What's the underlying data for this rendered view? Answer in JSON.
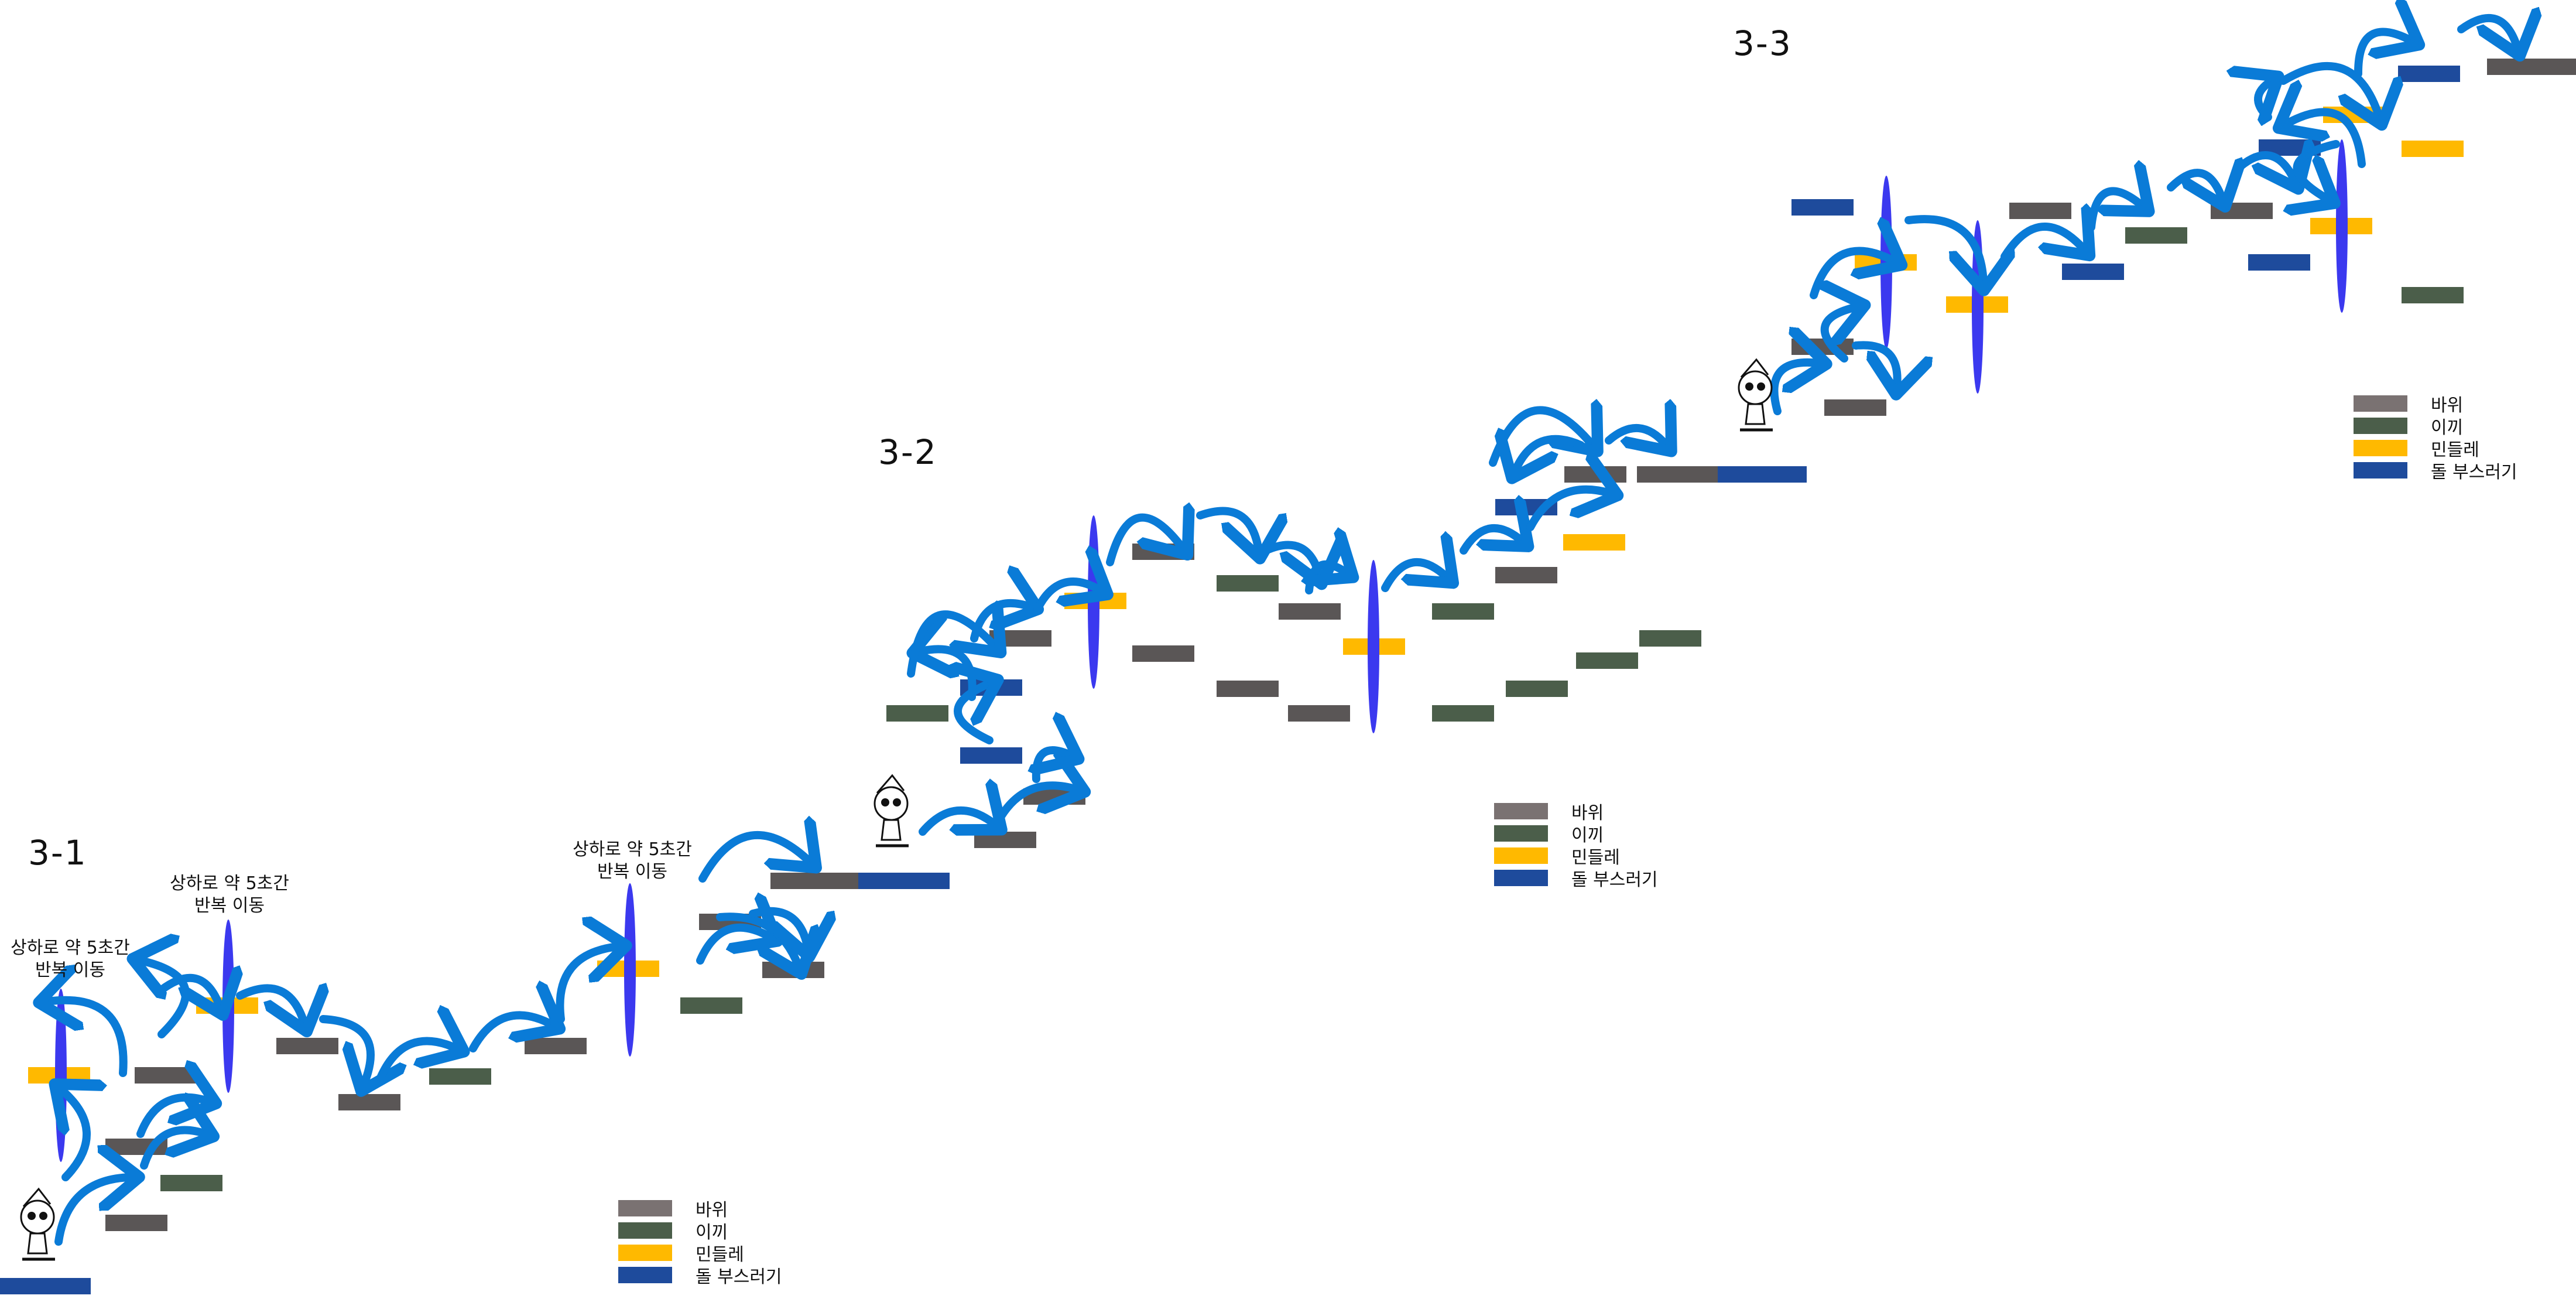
{
  "colors": {
    "rock": "#7a7272",
    "moss": "#4b5e4a",
    "dandelion": "#ffb900",
    "stone_breaker": "#1e4b9c",
    "rock_stage": "#5a5656",
    "moving_bar": "#3b39ef",
    "jump_arrow": "#0a7bd7"
  },
  "sections": [
    {
      "id": "3-1",
      "title": "3-1"
    },
    {
      "id": "3-2",
      "title": "3-2"
    },
    {
      "id": "3-3",
      "title": "3-3"
    }
  ],
  "notes": {
    "move_note": "상하로 약 5초간\n반복 이동"
  },
  "legend": {
    "items": [
      {
        "key": "rock",
        "label": "바위"
      },
      {
        "key": "moss",
        "label": "이끼"
      },
      {
        "key": "dandelion",
        "label": "민들레"
      },
      {
        "key": "stone_breaker",
        "label": "돌 부스러기"
      }
    ]
  },
  "icons": {
    "character": "character-icon",
    "jump_arrow": "jump-arrow-icon"
  }
}
